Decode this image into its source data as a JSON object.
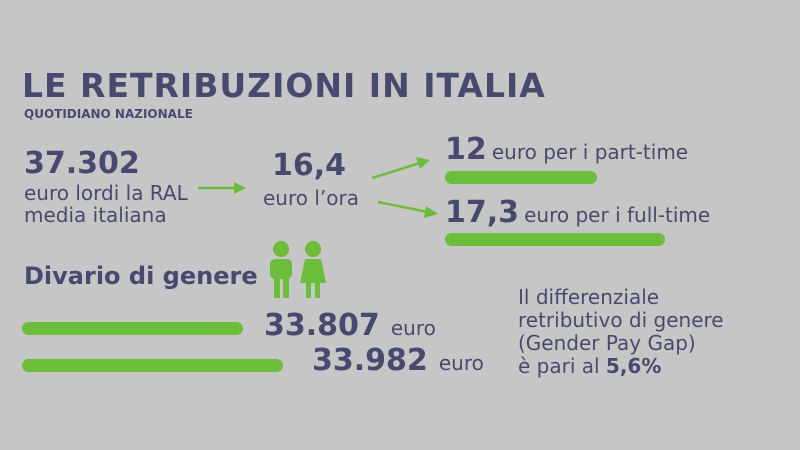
{
  "header": {
    "title": "LE RETRIBUZIONI IN ITALIA",
    "source": "QUOTIDIANO NAZIONALE"
  },
  "ral": {
    "value": "37.302",
    "lines": [
      "euro lordi la RAL",
      "media italiana"
    ]
  },
  "hourly": {
    "value": "16,4",
    "label": "euro l’ora"
  },
  "part_time": {
    "value": "12",
    "label": "euro per i part-time"
  },
  "full_time": {
    "value": "17,3",
    "label": "euro per i full-time"
  },
  "gender": {
    "title": "Divario di genere",
    "rows": [
      {
        "value": "33.807",
        "unit": "euro"
      },
      {
        "value": "33.982",
        "unit": "euro"
      }
    ]
  },
  "gap": {
    "lines": [
      "Il differenziale",
      "retributivo di genere",
      "(Gender Pay Gap)"
    ],
    "prefix": "è pari al",
    "value": "5,6%"
  }
}
